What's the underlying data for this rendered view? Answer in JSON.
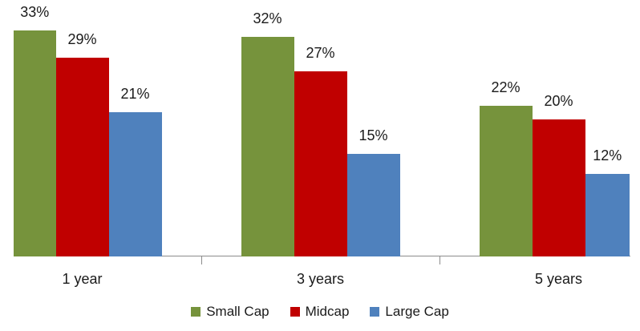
{
  "chart_data": {
    "type": "bar",
    "title": "",
    "xlabel": "",
    "ylabel": "",
    "categories": [
      "1 year",
      "3 years",
      "5 years"
    ],
    "series": [
      {
        "name": "Small Cap",
        "color": "#76933C",
        "values": [
          33,
          32,
          22
        ],
        "labels": [
          "33%",
          "32%",
          "22%"
        ]
      },
      {
        "name": "Midcap",
        "color": "#C00000",
        "values": [
          29,
          27,
          20
        ],
        "labels": [
          "29%",
          "27%",
          "20%"
        ]
      },
      {
        "name": "Large Cap",
        "color": "#4F81BD",
        "values": [
          21,
          15,
          12
        ],
        "labels": [
          "21%",
          "15%",
          "12%"
        ]
      }
    ],
    "unit": "%",
    "ylim": [
      0,
      37.4
    ],
    "grid": false,
    "y_axis_visible": false,
    "legend_position": "bottom",
    "axis_color": "#8C8C8C",
    "text_color": "#1A1A1A",
    "background_color": "#FFFFFF"
  }
}
